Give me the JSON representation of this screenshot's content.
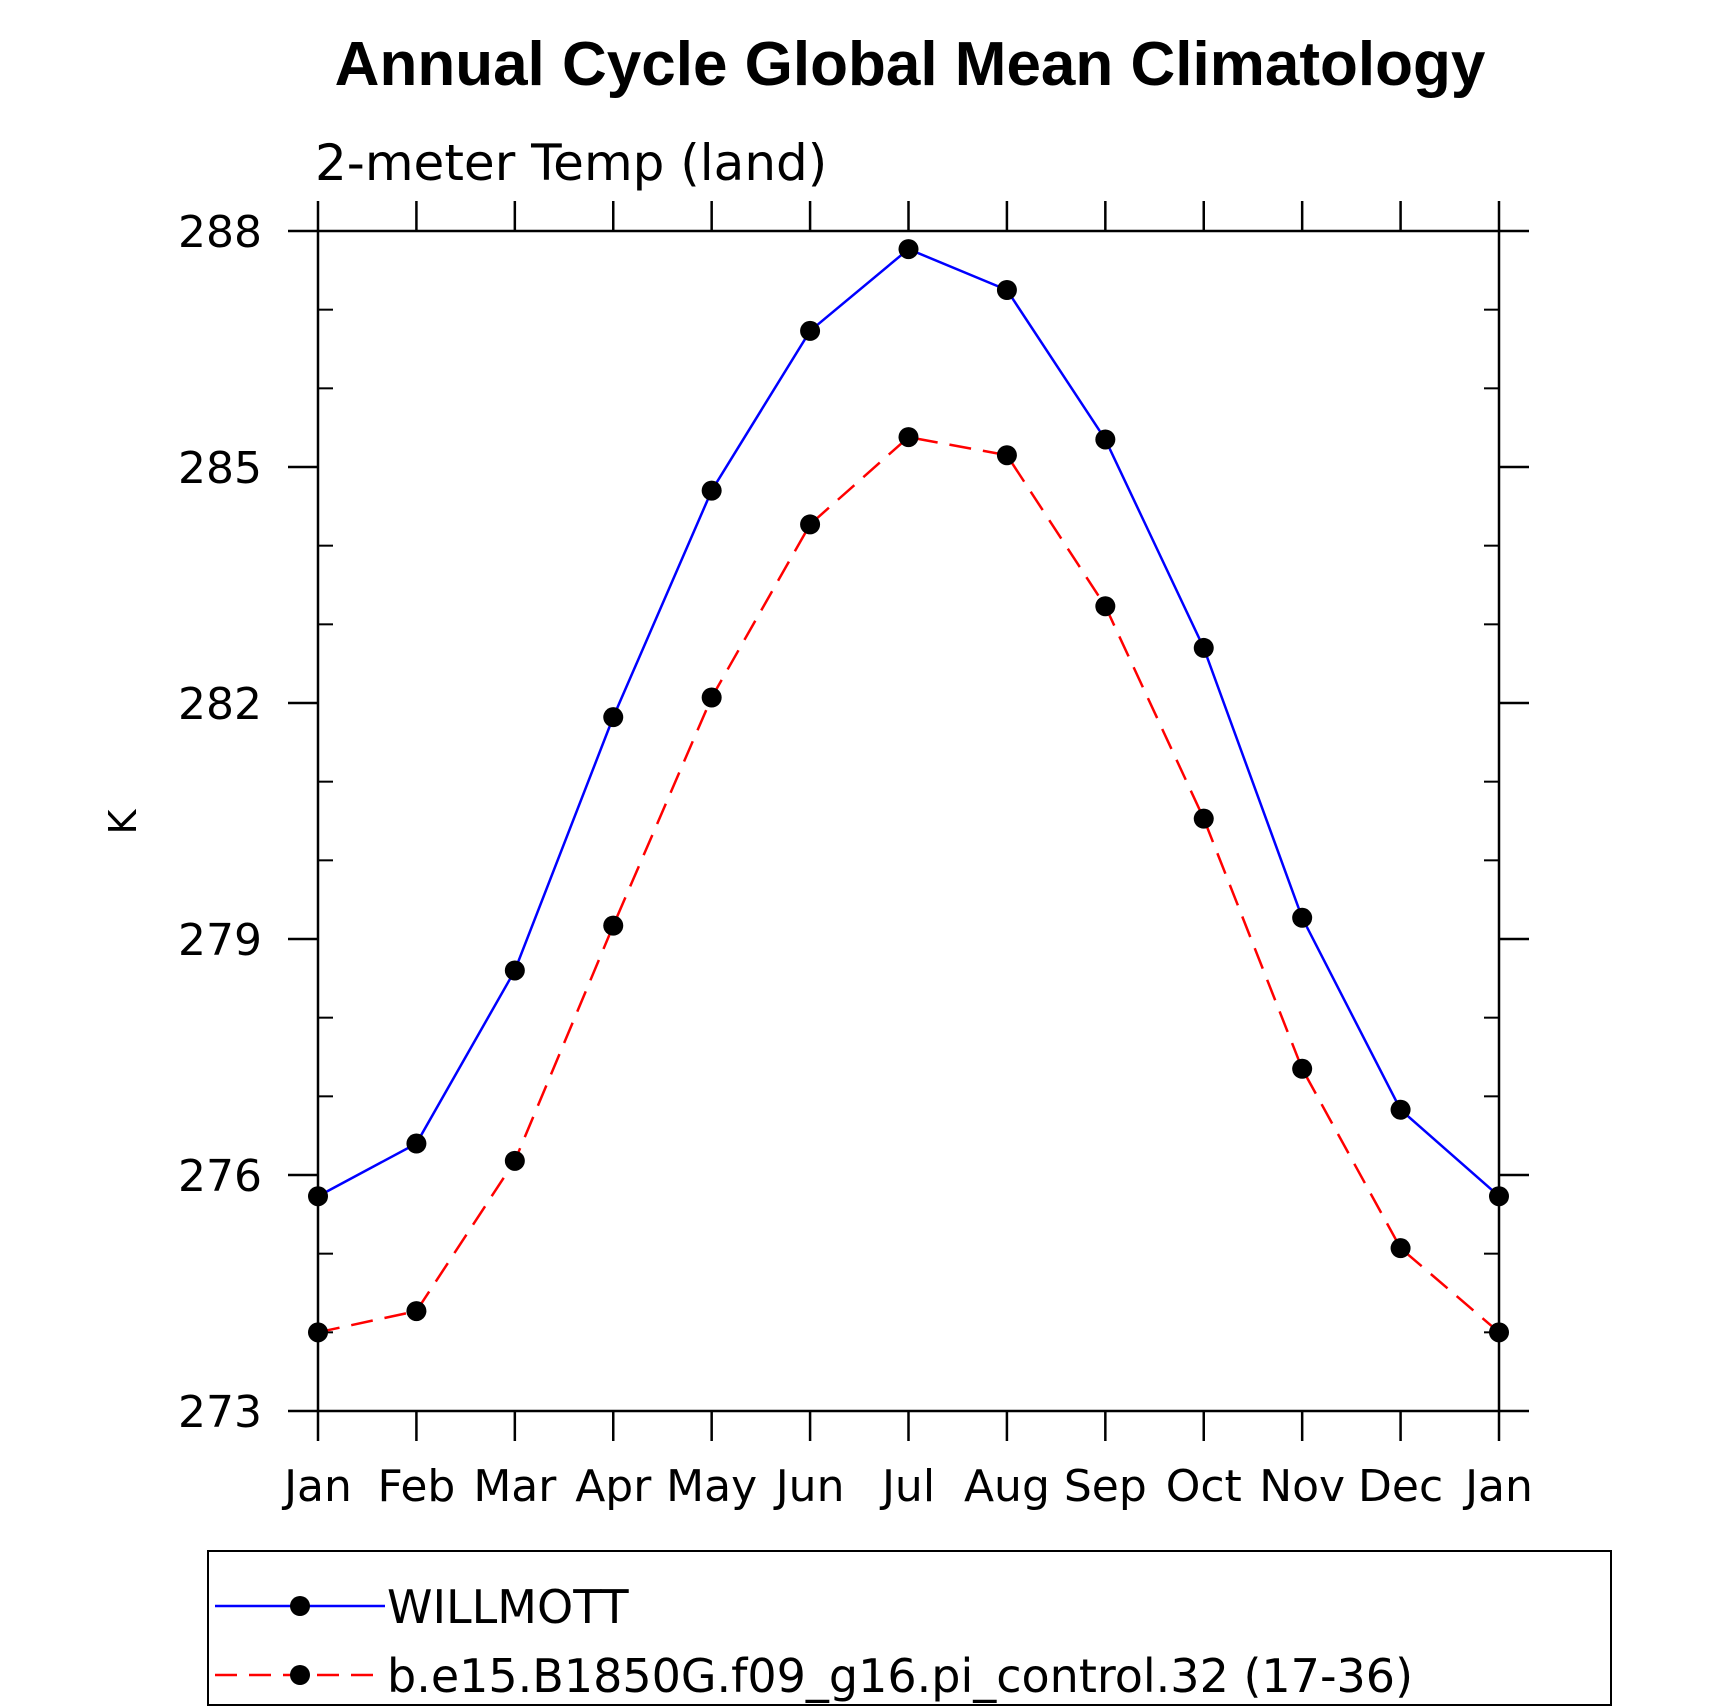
{
  "chart_data": {
    "type": "line",
    "title": "Annual Cycle Global Mean Climatology",
    "subtitle": "2-meter Temp (land)",
    "xlabel": "",
    "ylabel": "K",
    "categories": [
      "Jan",
      "Feb",
      "Mar",
      "Apr",
      "May",
      "Jun",
      "Jul",
      "Aug",
      "Sep",
      "Oct",
      "Nov",
      "Dec",
      "Jan"
    ],
    "ylim": [
      273,
      288
    ],
    "yticks": [
      273,
      276,
      279,
      282,
      285,
      288
    ],
    "series": [
      {
        "name": "WILLMOTT",
        "color": "#0000ff",
        "dash": "solid",
        "marker": "filled-circle",
        "values": [
          275.73,
          276.4,
          278.6,
          281.82,
          284.7,
          286.73,
          287.77,
          287.25,
          285.35,
          282.7,
          279.27,
          276.83,
          275.73
        ]
      },
      {
        "name": "b.e15.B1850G.f09_g16.pi_control.32 (17-36)",
        "color": "#ff0000",
        "dash": "dashed",
        "marker": "filled-circle",
        "values": [
          274.0,
          274.27,
          276.18,
          279.17,
          282.07,
          284.27,
          285.38,
          285.15,
          283.23,
          280.53,
          277.35,
          275.07,
          274.0
        ]
      }
    ],
    "grid": false,
    "legend": "bottom"
  }
}
